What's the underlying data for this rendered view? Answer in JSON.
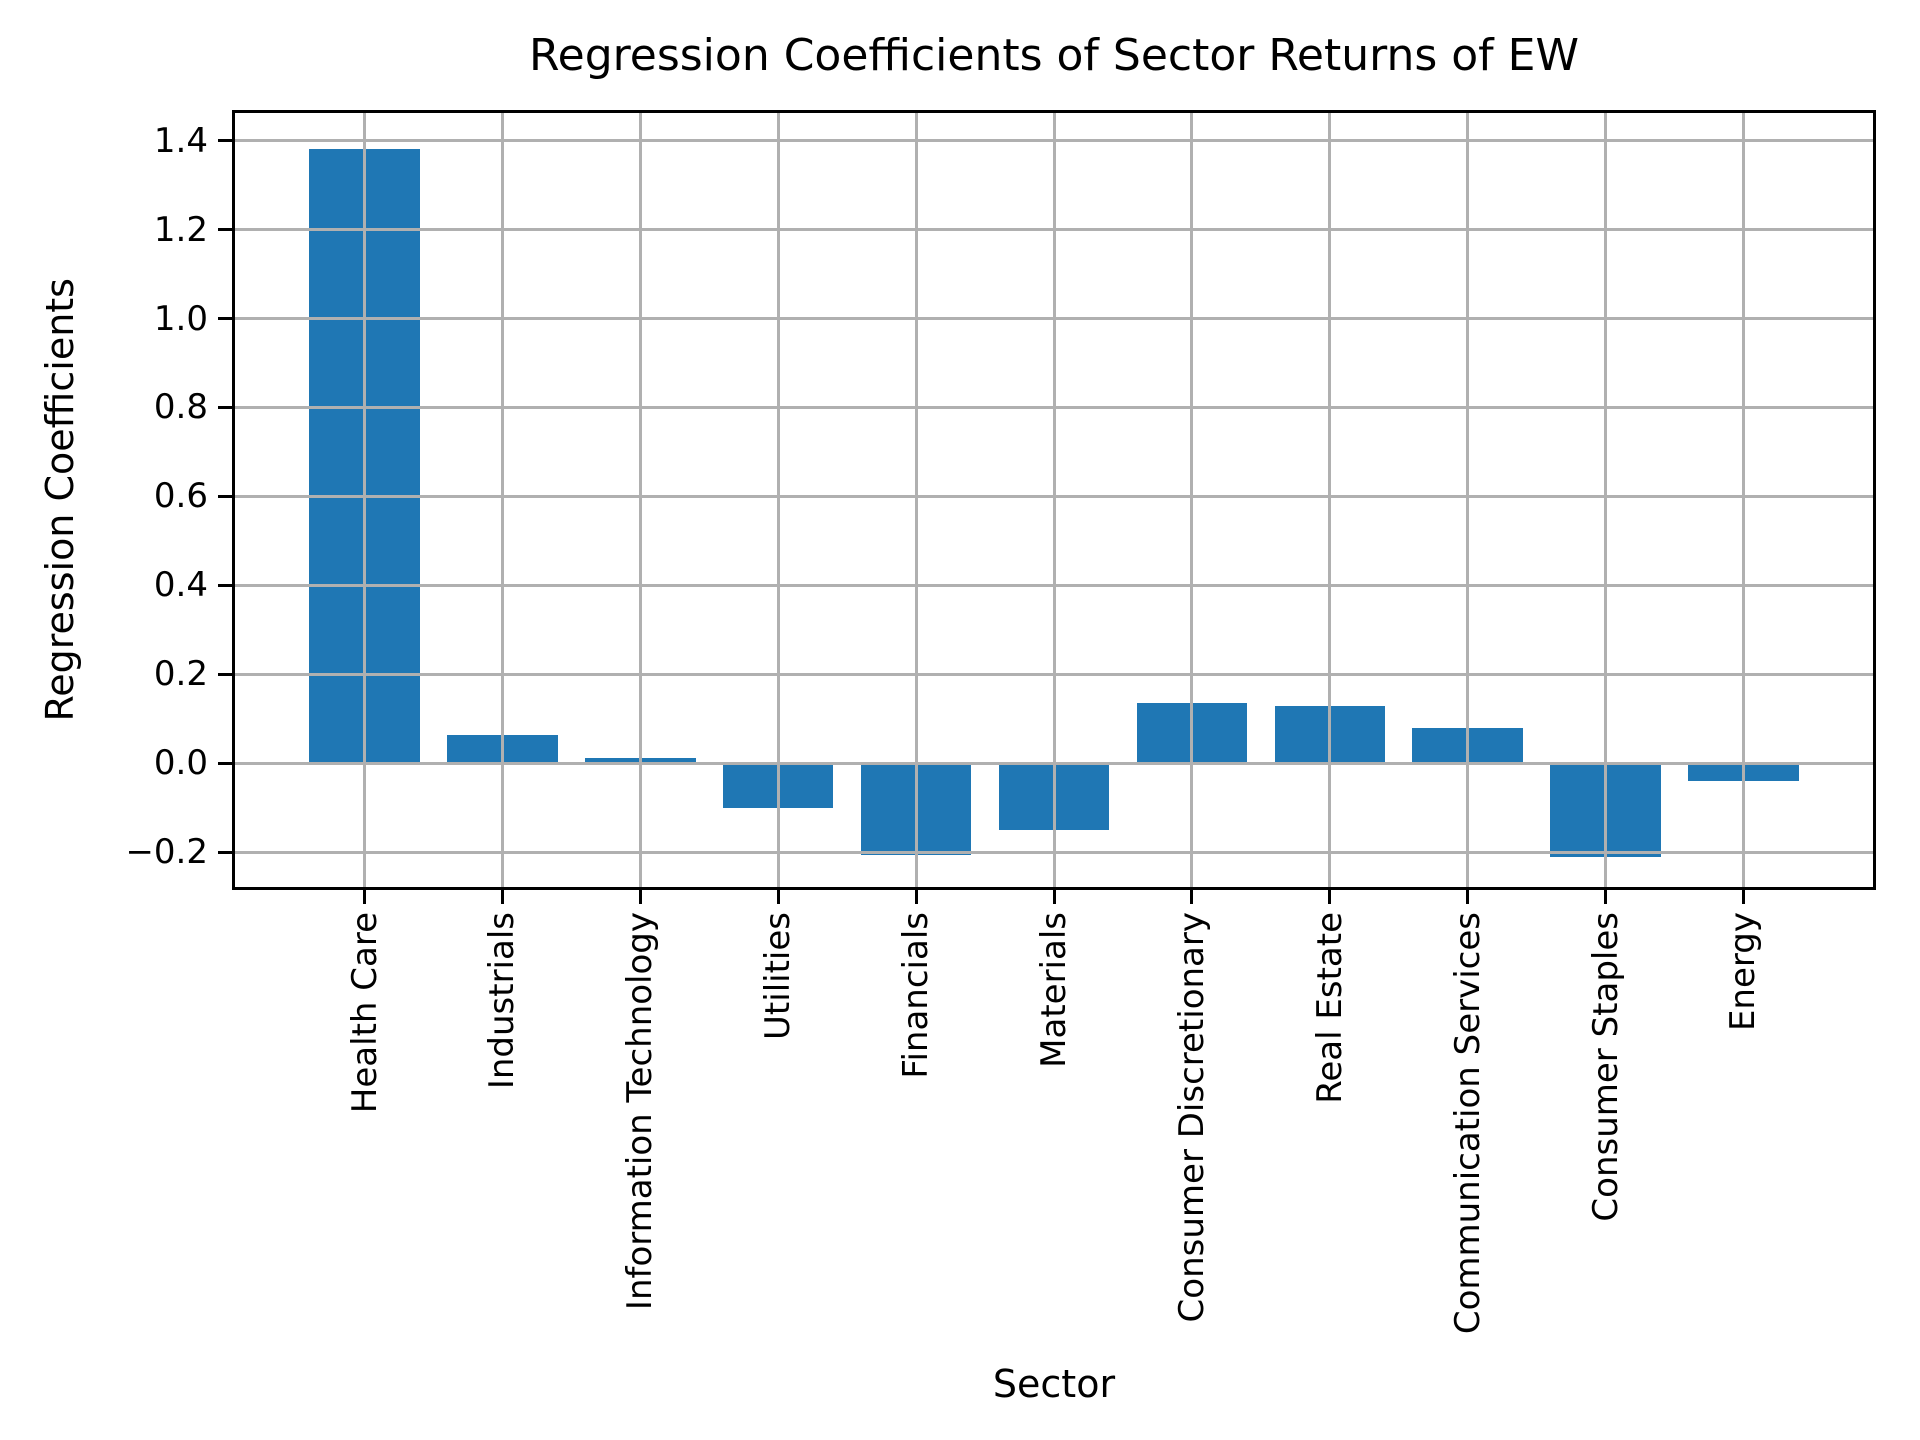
{
  "title": "Regression Coefficients of Sector Returns of EW",
  "chart_data": {
    "type": "bar",
    "title": "Regression Coefficients of Sector Returns of EW",
    "xlabel": "Sector",
    "ylabel": "Regression Coefficients",
    "categories": [
      "Health Care",
      "Industrials",
      "Information Technology",
      "Utilities",
      "Financials",
      "Materials",
      "Consumer Discretionary",
      "Real Estate",
      "Communication Services",
      "Consumer Staples",
      "Energy"
    ],
    "values": [
      1.38,
      0.063,
      0.013,
      -0.1,
      -0.205,
      -0.15,
      0.135,
      0.13,
      0.08,
      -0.21,
      -0.04
    ],
    "yticks": [
      1.4,
      1.2,
      1.0,
      0.8,
      0.6,
      0.4,
      0.2,
      0.0,
      -0.2
    ],
    "ytick_labels": [
      "1.4",
      "1.2",
      "1.0",
      "0.8",
      "0.6",
      "0.4",
      "0.2",
      "0.0",
      "−0.2"
    ],
    "ylim": [
      -0.278,
      1.462
    ],
    "x_margin_units": 0.94,
    "bar_width_fraction": 0.8,
    "grid": true,
    "grid_on_top": true,
    "legend": "none",
    "bar_color": "#1f77b4",
    "grid_color": "#b0b0b0",
    "axis_color": "#000000",
    "background_color": "#ffffff"
  }
}
